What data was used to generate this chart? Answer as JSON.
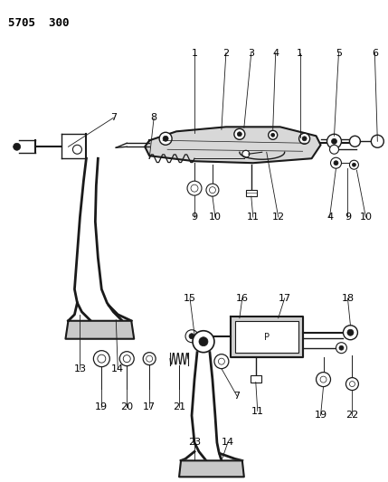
{
  "title": "5705  300",
  "bg": "#f5f5f0",
  "lc": "#1a1a1a",
  "fig_w": 4.29,
  "fig_h": 5.33,
  "dpi": 100
}
